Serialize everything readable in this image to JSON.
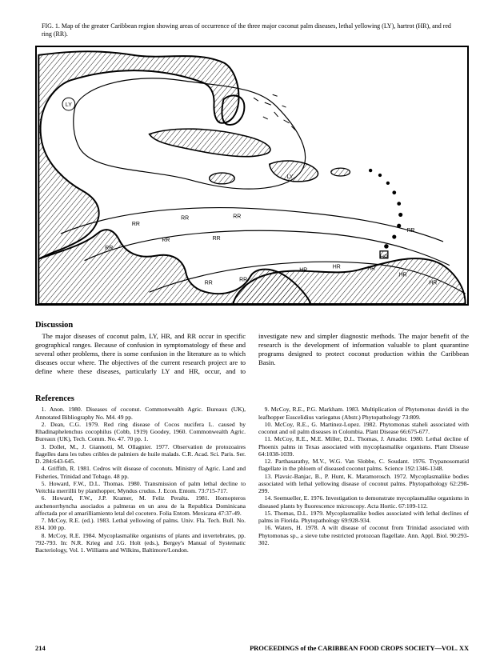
{
  "figure": {
    "caption": "FIG. 1.   Map of the greater Caribbean region showing areas of occurrence of the three major coconut palm diseases, lethal yellowing (LY), hartrot (HR), and red ring (RR).",
    "labels": {
      "LY": "LY",
      "HR": "HR",
      "RR": "RR"
    },
    "style": {
      "border_color": "#000000",
      "border_width": 2,
      "background": "#ffffff",
      "land_stroke": "#000000",
      "hatch_stroke": "#000000",
      "label_font": "sans-serif",
      "label_fontsize": 7
    }
  },
  "discussion": {
    "title": "Discussion",
    "body": "The major diseases of coconut palm, LY, HR, and RR occur in specific geographical ranges. Because of confusion in symptomatology of these and several other problems, there is some confusion in the literature as to which diseases occur where. The objectives of the current research project are to define where these diseases, particularly LY and HR, occur, and to investigate new and simpler diagnostic methods. The major benefit of the research is the development of information valuable to plant quarantine programs designed to protect coconut production within the Caribbean Basin."
  },
  "references": {
    "title": "References",
    "items": [
      "1.  Anon. 1980. Diseases of coconut. Commonwealth Agric. Bureaux (UK), Annotated Bibliography No. M4. 49 pp.",
      "2.  Dean, C.G. 1979. Red ring disease of Cocos nucifera L. caused by Rhadinaphelenchus cocophilus (Cobb, 1919) Goodey, 1960. Commonwealth Agric. Bureaux (UK), Tech. Comm. No. 47. 70 pp. 1.",
      "3.  Dollet, M., J. Giannotti, M. Ollagnier. 1977. Observation de protozoaires flagelles dans les tubes cribles de palmiers de huile malads. C.R. Acad. Sci. Paris. Ser. D. 284:643-645.",
      "4.  Griffith, R. 1981. Cedros wilt disease of coconuts. Ministry of Agric. Land and Fisheries, Trinidad and Tobago. 48 pp.",
      "5.  Howard, F.W., D.L. Thomas. 1980. Transmission of palm lethal decline to Veitchia merrillii by planthopper, Myndus crudus. J. Econ. Entom. 73:715-717.",
      "6.  Howard, F.W., J.P. Kramer, M. Feliz Peralta. 1981. Homopteros auchenorrhyncha asociados a palmeras en un area de la Republica Dominicana affectada por el amarilliamiento letal del cocotero. Folia Entom. Mexicana 47:37-49.",
      "7.  McCoy, R.E. (ed.). 1983. Lethal yellowing of palms. Univ. Fla. Tech. Bull. No. 834. 100 pp.",
      "8.  McCoy, R.E. 1984. Mycoplasmalike organisms of plants and invertebrates, pp. 792-793. In: N.R. Krieg and J.G. Holt (eds.), Bergey's Manual of Systematic Bacteriology, Vol. 1. Williams and Wilkins, Baltimore/London.",
      "9.  McCoy, R.E., P.G. Markham. 1983. Multiplication of Phytomonas davidi in the leafhopper Euscelidius variegatus (Abstr.) Phytopathology 73:809.",
      "10.  McCoy, R.E., G. Martinez-Lopez. 1982. Phytomonas staheli associated with coconut and oil palm diseases in Colombia. Plant Disease 66:675-677.",
      "11.  McCoy, R.E., M.E. Miller, D.L. Thomas, J. Amador. 1980. Lethal decline of Phoenix palms in Texas associated with mycoplasmalike organisms. Plant Disease 64:1038-1039.",
      "12.  Parthasarathy, M.V., W.G. Van Slobbe, C. Soudant. 1976. Trypanosomatid flagellate in the phloem of diseased coconut palms. Science 192:1346-1348.",
      "13.  Plavsic-Banjac, B., P. Hunt, K. Maramorosch. 1972. Mycoplasmalike bodies associated with lethal yellowing disease of coconut palms. Phytopathology 62:298-299.",
      "14.  Seemueller, E. 1976. Investigation to demonstrate mycoplasmalike organisms in diseased plants by fluorescence microscopy. Acta Hortic. 67:109-112.",
      "15.  Thomas, D.L. 1979. Mycoplasmalike bodies associated with lethal declines of palms in Florida. Phytopathology 69:928-934.",
      "16.  Waters, H. 1978. A wilt disease of coconut from Trinidad associated with Phytomonas sp., a sieve tube restricted protozoan flagellate. Ann. Appl. Biol. 90:293-302."
    ]
  },
  "footer": {
    "page": "214",
    "right": "PROCEEDINGS of the CARIBBEAN FOOD CROPS SOCIETY—VOL. XX"
  }
}
